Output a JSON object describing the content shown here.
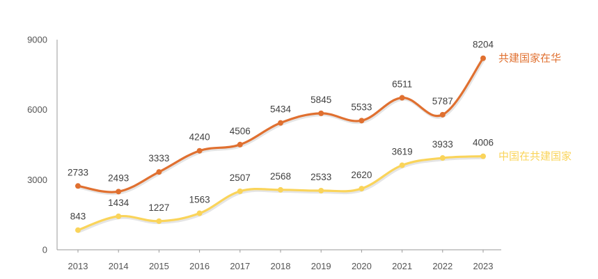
{
  "chart_data": {
    "type": "line",
    "title": "",
    "xlabel": "",
    "ylabel": "",
    "x": [
      "2013",
      "2014",
      "2015",
      "2016",
      "2017",
      "2018",
      "2019",
      "2020",
      "2021",
      "2022",
      "2023"
    ],
    "ylim": [
      0,
      9000
    ],
    "yticks": [
      "0",
      "3000",
      "6000",
      "9000"
    ],
    "grid": false,
    "legend": "inline-right",
    "series": [
      {
        "name": "共建国家在华",
        "color": "#E07030",
        "values": [
          2733,
          2493,
          3333,
          4240,
          4506,
          5434,
          5845,
          5533,
          6511,
          5787,
          8204
        ]
      },
      {
        "name": "中国在共建国家",
        "color": "#FAD45A",
        "values": [
          843,
          1434,
          1227,
          1563,
          2507,
          2568,
          2533,
          2620,
          3619,
          3933,
          4006
        ]
      }
    ]
  }
}
